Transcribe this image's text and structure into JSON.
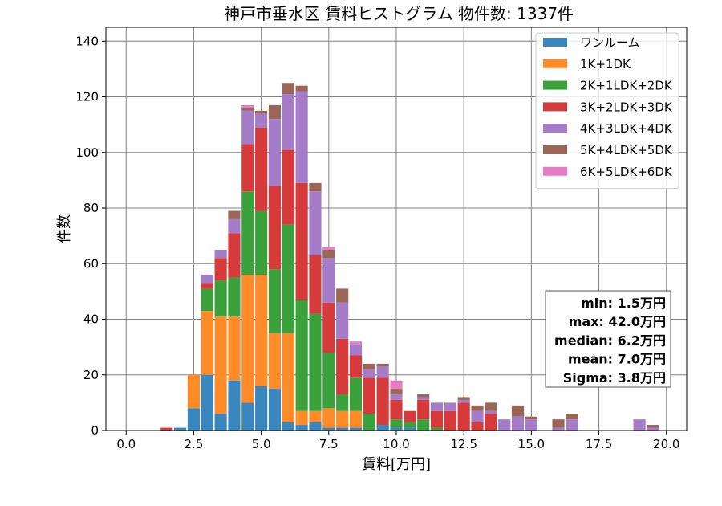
{
  "chart_data": {
    "type": "bar",
    "stacked": true,
    "title": "神戸市垂水区 賃料ヒストグラム  物件数: 1337件",
    "xlabel": "賃料[万円]",
    "ylabel": "件数",
    "xlim": [
      -0.75,
      20.75
    ],
    "ylim": [
      0,
      145
    ],
    "xticks": [
      0.0,
      2.5,
      5.0,
      7.5,
      10.0,
      12.5,
      15.0,
      17.5,
      20.0
    ],
    "xtick_labels": [
      "0.0",
      "2.5",
      "5.0",
      "7.5",
      "10.0",
      "12.5",
      "15.0",
      "17.5",
      "20.0"
    ],
    "yticks": [
      0,
      20,
      40,
      60,
      80,
      100,
      120,
      140
    ],
    "ytick_labels": [
      "0",
      "20",
      "40",
      "60",
      "80",
      "100",
      "120",
      "140"
    ],
    "grid": true,
    "legend_position": "top-right",
    "bin_width": 0.5,
    "bin_centers": [
      1.5,
      2.0,
      2.5,
      3.0,
      3.5,
      4.0,
      4.5,
      5.0,
      5.5,
      6.0,
      6.5,
      7.0,
      7.5,
      8.0,
      8.5,
      9.0,
      9.5,
      10.0,
      10.5,
      11.0,
      11.5,
      12.0,
      12.5,
      13.0,
      13.5,
      14.0,
      14.5,
      15.0,
      15.5,
      16.0,
      16.5,
      19.0,
      19.5
    ],
    "series": [
      {
        "name": "ワンルーム",
        "color": "#3a87bf",
        "values": [
          0,
          1,
          8,
          20,
          6,
          18,
          10,
          16,
          15,
          3,
          2,
          3,
          1,
          1,
          1,
          0,
          2,
          1,
          1,
          0,
          0,
          0,
          0,
          0,
          0,
          0,
          0,
          0,
          0,
          0,
          0,
          0,
          0
        ]
      },
      {
        "name": "1K+1DK",
        "color": "#ff8c28",
        "values": [
          0,
          0,
          12,
          23,
          35,
          23,
          46,
          40,
          20,
          32,
          5,
          4,
          7,
          6,
          6,
          0,
          0,
          0,
          0,
          0,
          0,
          0,
          0,
          0,
          0,
          0,
          0,
          0,
          0,
          0,
          0,
          0,
          0
        ]
      },
      {
        "name": "2K+1LDK+2DK",
        "color": "#3ba13b",
        "values": [
          0,
          0,
          0,
          8,
          13,
          14,
          30,
          23,
          23,
          39,
          40,
          35,
          20,
          6,
          12,
          6,
          0,
          3,
          2,
          4,
          1,
          0,
          0,
          0,
          0,
          0,
          0,
          0,
          0,
          0,
          0,
          0,
          0
        ]
      },
      {
        "name": "3K+2LDK+3DK",
        "color": "#d73a3a",
        "values": [
          1,
          0,
          0,
          2,
          8,
          16,
          17,
          30,
          30,
          27,
          42,
          21,
          18,
          20,
          8,
          13,
          17,
          7,
          4,
          7,
          6,
          7,
          10,
          3,
          6,
          0,
          0,
          0,
          0,
          0,
          0,
          0,
          0
        ]
      },
      {
        "name": "4K+3LDK+4DK",
        "color": "#a47cc8",
        "values": [
          0,
          0,
          0,
          3,
          3,
          5,
          12,
          5,
          24,
          20,
          33,
          23,
          16,
          13,
          4,
          3,
          4,
          2,
          0,
          1,
          3,
          3,
          1,
          4,
          1,
          4,
          5,
          4,
          0,
          1,
          4,
          4,
          1
        ]
      },
      {
        "name": "5K+4LDK+5DK",
        "color": "#9a6658",
        "values": [
          0,
          0,
          0,
          0,
          0,
          3,
          1,
          1,
          5,
          4,
          2,
          3,
          3,
          5,
          0,
          2,
          1,
          2,
          0,
          1,
          0,
          0,
          1,
          2,
          3,
          0,
          4,
          1,
          0,
          3,
          2,
          0,
          1
        ]
      },
      {
        "name": "6K+5LDK+6DK",
        "color": "#e57dc6",
        "values": [
          0,
          0,
          0,
          0,
          0,
          0,
          1,
          0,
          0,
          0,
          0,
          0,
          1,
          0,
          1,
          0,
          0,
          3,
          0,
          0,
          0,
          0,
          0,
          0,
          0,
          0,
          0,
          0,
          0,
          0,
          0,
          0,
          0
        ]
      }
    ],
    "stats": [
      "min: 1.5万円",
      "max: 42.0万円",
      "median: 6.2万円",
      "mean: 7.0万円",
      "Sigma: 3.8万円"
    ]
  }
}
